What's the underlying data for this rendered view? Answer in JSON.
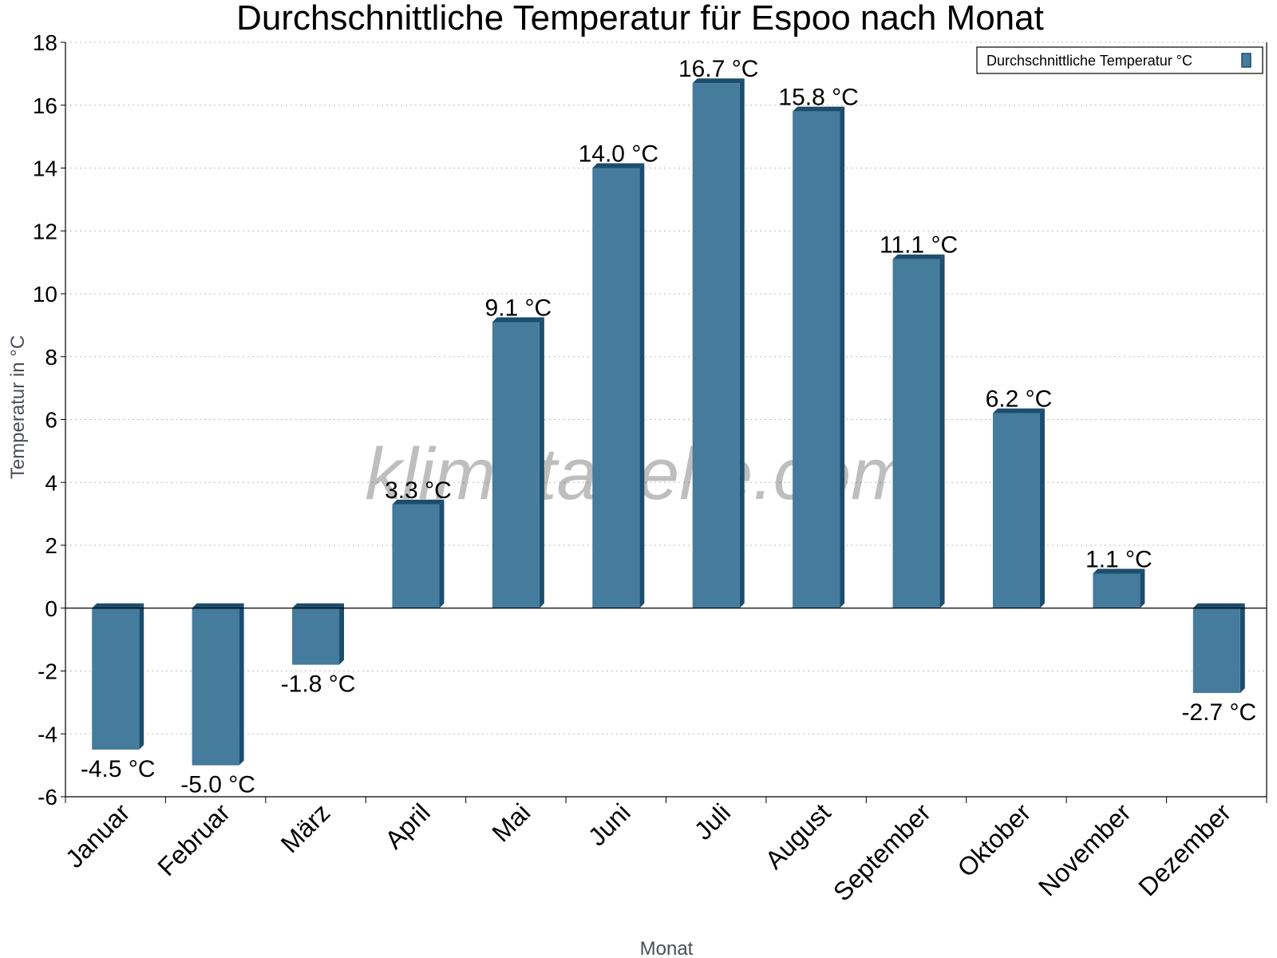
{
  "chart_data": {
    "type": "bar",
    "title": "Durchschnittliche Temperatur für Espoo nach Monat",
    "xlabel": "Monat",
    "ylabel": "Temperatur in °C",
    "categories": [
      "Januar",
      "Februar",
      "März",
      "April",
      "Mai",
      "Juni",
      "Juli",
      "August",
      "September",
      "Oktober",
      "November",
      "Dezember"
    ],
    "series": [
      {
        "name": "Durchschnittliche Temperatur °C",
        "values": [
          -4.5,
          -5.0,
          -1.8,
          3.3,
          9.1,
          14.0,
          16.7,
          15.8,
          11.1,
          6.2,
          1.1,
          -2.7
        ],
        "labels": [
          "-4.5 °C",
          "-5.0 °C",
          "-1.8 °C",
          "3.3 °C",
          "9.1 °C",
          "14.0 °C",
          "16.7 °C",
          "15.8 °C",
          "11.1 °C",
          "6.2 °C",
          "1.1 °C",
          "-2.7 °C"
        ]
      }
    ],
    "ylim": [
      -6,
      18
    ],
    "yticks": [
      "-6",
      "-4",
      "-2",
      "0",
      "2",
      "4",
      "6",
      "8",
      "10",
      "12",
      "14",
      "16",
      "18"
    ],
    "grid": true,
    "legend": "top-right",
    "watermark": "klimatabelle.com",
    "colors": {
      "bar": "#457b9d",
      "bar_side": "#1b4d6e"
    }
  }
}
